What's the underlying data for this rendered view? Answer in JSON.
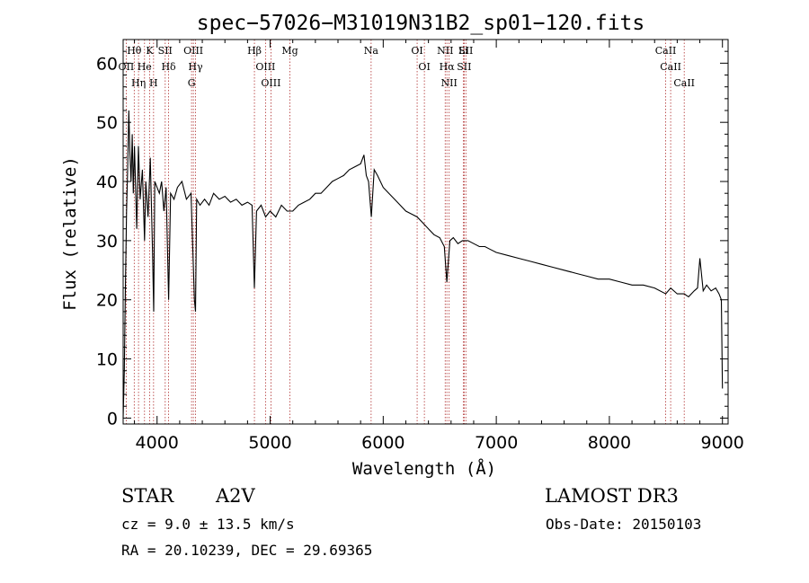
{
  "chart_data": {
    "type": "line",
    "title": "spec−57026−M31019N31B2_sp01−120.fits",
    "xlabel": "Wavelength (Å)",
    "ylabel": "Flux (relative)",
    "xlim": [
      3700,
      9050
    ],
    "ylim": [
      -1,
      64
    ],
    "x_ticks": [
      4000,
      5000,
      6000,
      7000,
      8000,
      9000
    ],
    "y_ticks": [
      0,
      10,
      20,
      30,
      40,
      50,
      60
    ],
    "series": [
      {
        "name": "flux",
        "x": [
          3700,
          3710,
          3720,
          3730,
          3740,
          3750,
          3760,
          3770,
          3780,
          3790,
          3800,
          3820,
          3835,
          3850,
          3870,
          3889,
          3900,
          3920,
          3940,
          3960,
          3970,
          3980,
          4000,
          4020,
          4040,
          4060,
          4080,
          4102,
          4120,
          4150,
          4180,
          4220,
          4260,
          4300,
          4330,
          4340,
          4350,
          4380,
          4420,
          4460,
          4500,
          4550,
          4600,
          4650,
          4700,
          4750,
          4800,
          4840,
          4861,
          4880,
          4920,
          4960,
          5000,
          5050,
          5100,
          5150,
          5200,
          5250,
          5300,
          5350,
          5400,
          5450,
          5500,
          5550,
          5600,
          5650,
          5700,
          5750,
          5800,
          5830,
          5850,
          5870,
          5895,
          5920,
          5950,
          6000,
          6050,
          6100,
          6150,
          6200,
          6250,
          6300,
          6350,
          6400,
          6450,
          6500,
          6540,
          6563,
          6590,
          6620,
          6660,
          6700,
          6750,
          6800,
          6850,
          6900,
          6950,
          7000,
          7100,
          7200,
          7300,
          7400,
          7500,
          7600,
          7700,
          7800,
          7900,
          8000,
          8100,
          8200,
          8300,
          8400,
          8498,
          8542,
          8600,
          8662,
          8700,
          8750,
          8780,
          8800,
          8830,
          8860,
          8900,
          8940,
          8970,
          8990,
          9000
        ],
        "y": [
          0,
          8,
          22,
          35,
          42,
          52,
          45,
          40,
          48,
          38,
          46,
          32,
          46,
          37,
          42,
          30,
          40,
          34,
          44,
          28,
          18,
          40,
          39,
          38,
          40,
          35,
          39,
          20,
          38,
          37,
          39,
          40,
          37,
          38,
          20,
          18,
          37,
          36,
          37,
          36,
          38,
          37,
          37.5,
          36.5,
          37,
          36,
          36.5,
          36,
          22,
          35,
          36,
          34,
          35,
          34,
          36,
          35,
          35,
          36,
          36.5,
          37,
          38,
          38,
          39,
          40,
          40.5,
          41,
          42,
          42.5,
          43,
          44.5,
          41,
          40,
          34,
          42,
          41,
          39,
          38,
          37,
          36,
          35,
          34.5,
          34,
          33,
          32,
          31,
          30.5,
          29,
          23,
          30,
          30.5,
          29.5,
          30,
          30,
          29.5,
          29,
          29,
          28.5,
          28,
          27.5,
          27,
          26.5,
          26,
          25.5,
          25,
          24.5,
          24,
          23.5,
          23.5,
          23,
          22.5,
          22.5,
          22,
          21,
          22,
          21,
          21,
          20.5,
          21.5,
          22,
          27,
          21.5,
          22.5,
          21.5,
          22,
          21,
          20,
          5
        ]
      }
    ],
    "lines": [
      {
        "label": "Hθ",
        "x": 3798
      },
      {
        "label": "OII",
        "x": 3727
      },
      {
        "label": "Hη",
        "x": 3836
      },
      {
        "label": "He",
        "x": 3889
      },
      {
        "label": "K",
        "x": 3934
      },
      {
        "label": "H",
        "x": 3969
      },
      {
        "label": "SII",
        "x": 4072
      },
      {
        "label": "Hδ",
        "x": 4102
      },
      {
        "label": "OIII",
        "x": 4321
      },
      {
        "label": "Hγ",
        "x": 4340
      },
      {
        "label": "G",
        "x": 4305
      },
      {
        "label": "Hβ",
        "x": 4861
      },
      {
        "label": "OIII",
        "x": 4959
      },
      {
        "label": "OIII",
        "x": 5007
      },
      {
        "label": "Mg",
        "x": 5175
      },
      {
        "label": "Na",
        "x": 5893
      },
      {
        "label": "OI",
        "x": 6300
      },
      {
        "label": "OI",
        "x": 6364
      },
      {
        "label": "NII",
        "x": 6548
      },
      {
        "label": "Hα",
        "x": 6563
      },
      {
        "label": "NII",
        "x": 6583
      },
      {
        "label": "SII",
        "x": 6716
      },
      {
        "label": "Li",
        "x": 6708
      },
      {
        "label": "SII",
        "x": 6731
      },
      {
        "label": "CaII",
        "x": 8498
      },
      {
        "label": "CaII",
        "x": 8542
      },
      {
        "label": "CaII",
        "x": 8662
      }
    ]
  },
  "info": {
    "object_class": "STAR",
    "subclass": "A2V",
    "survey": "LAMOST DR3",
    "redshift": "cz = 9.0 ± 13.5 km/s",
    "obs_date": "Obs-Date: 20150103",
    "coords": "RA =  20.10239, DEC =  29.69365"
  },
  "colors": {
    "axis": "#000000",
    "spectrum": "#000000",
    "line_marker": "#b03030"
  }
}
